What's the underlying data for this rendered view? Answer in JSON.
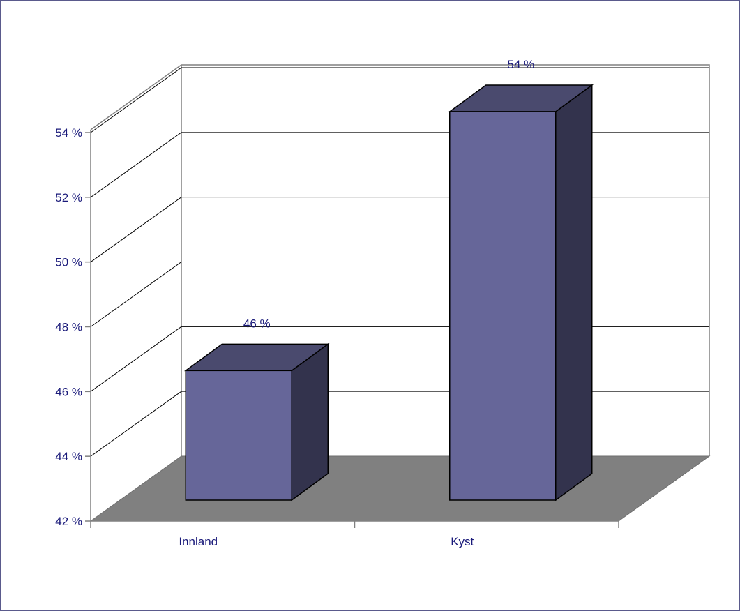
{
  "chart_data": {
    "type": "bar",
    "style": "3d-column",
    "categories": [
      "Innland",
      "Kyst"
    ],
    "values": [
      46,
      54
    ],
    "value_labels": [
      "46 %",
      "54 %"
    ],
    "ylim": [
      42,
      54
    ],
    "yticks": [
      42,
      44,
      46,
      48,
      50,
      52,
      54
    ],
    "ytick_labels": [
      "42 %",
      "44 %",
      "46 %",
      "48 %",
      "50 %",
      "52 %",
      "54 %"
    ],
    "title": "",
    "xlabel": "",
    "ylabel": "",
    "grid": true,
    "legend": "none",
    "colors": {
      "bar_front": "#666699",
      "bar_top": "#4a4a6e",
      "bar_side": "#33334d",
      "floor": "#808080",
      "text": "#1a1a7a",
      "frame": "#5a5a8c"
    }
  }
}
